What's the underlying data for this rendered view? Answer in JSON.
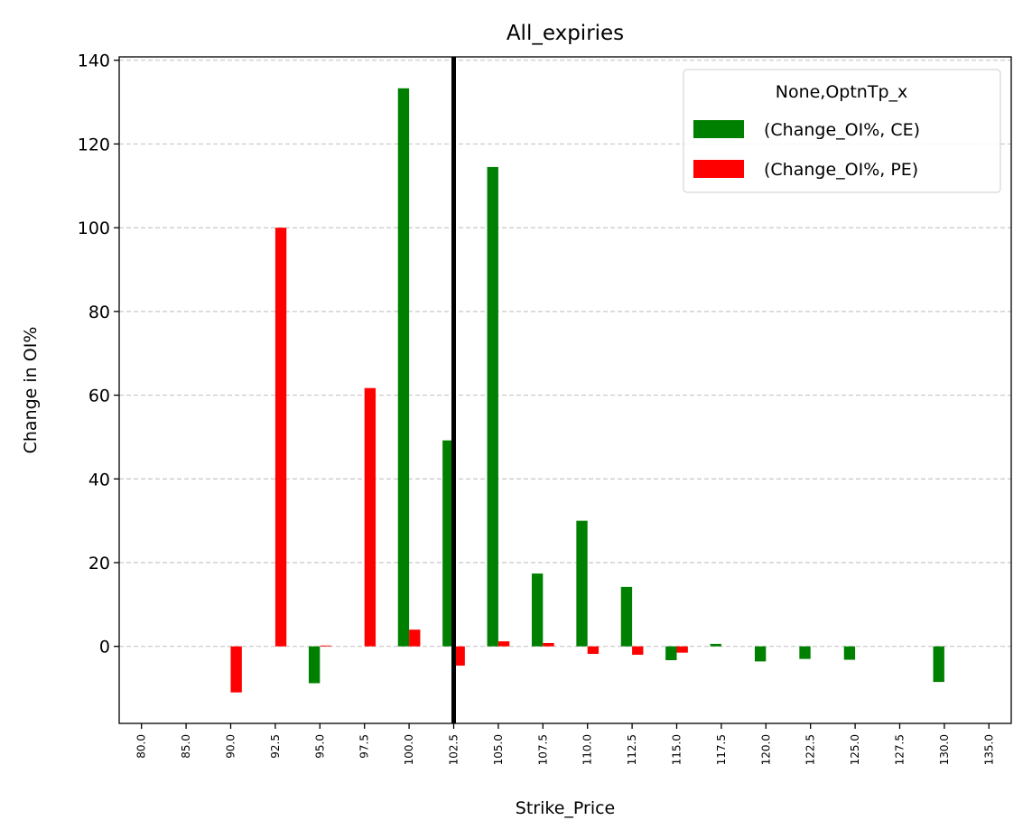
{
  "chart_data": {
    "type": "bar",
    "title": "All_expiries",
    "xlabel": "Strike_Price",
    "ylabel": "Change in OI%",
    "categories": [
      "80.0",
      "85.0",
      "90.0",
      "92.5",
      "95.0",
      "97.5",
      "100.0",
      "102.5",
      "105.0",
      "107.5",
      "110.0",
      "112.5",
      "115.0",
      "117.5",
      "120.0",
      "122.5",
      "125.0",
      "127.5",
      "130.0",
      "135.0"
    ],
    "series": [
      {
        "name": "(Change_OI%, CE)",
        "color": "#008000",
        "values": [
          0,
          0,
          0,
          0,
          -8.8,
          0,
          133.3,
          49.2,
          114.5,
          17.4,
          30.0,
          14.2,
          -3.3,
          0.6,
          -3.6,
          -3.0,
          -3.2,
          0,
          -8.5,
          0
        ]
      },
      {
        "name": "(Change_OI%, PE)",
        "color": "#ff0000",
        "values": [
          0,
          0,
          -11.0,
          100.0,
          0.2,
          61.7,
          4.0,
          -4.6,
          1.2,
          0.8,
          -1.8,
          -2.0,
          -1.5,
          0,
          0,
          0,
          0,
          0,
          0,
          0
        ]
      }
    ],
    "yticks": [
      0,
      20,
      40,
      60,
      80,
      100,
      120,
      140
    ],
    "ylim": [
      -18.4,
      140.8
    ],
    "vline": {
      "category": "102.5",
      "color": "#000000"
    },
    "legend": {
      "title": "None,OptnTp_x",
      "placement": "top-right"
    },
    "grid": {
      "y": true,
      "x": false,
      "style": "dashed"
    }
  }
}
